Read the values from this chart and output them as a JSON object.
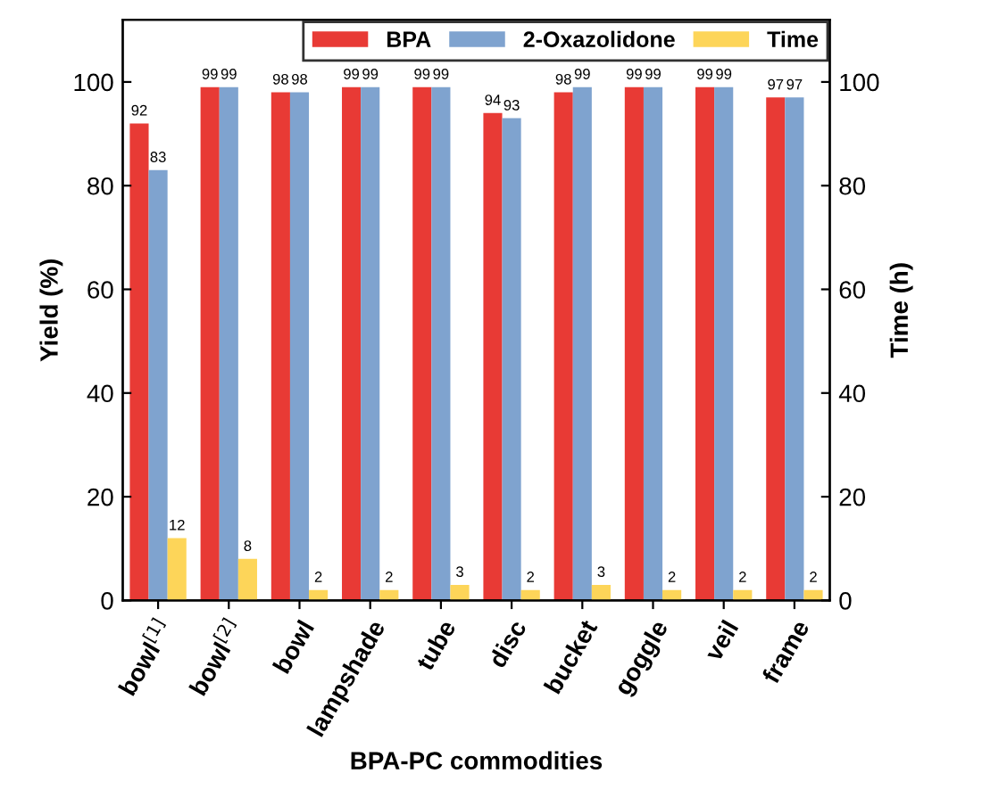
{
  "chart_data": {
    "type": "bar",
    "xlabel": "BPA-PC commodities",
    "ylabel": "Yield (%)",
    "y2label": "Time (h)",
    "categories": [
      "bowl$^{[1]}$",
      "bowl$^{[2]}$",
      "bowl",
      "lampshade",
      "tube",
      "disc",
      "bucket",
      "goggle",
      "veil",
      "frame"
    ],
    "series": [
      {
        "name": "BPA",
        "color": "#e83a35",
        "values": [
          92,
          99,
          98,
          99,
          99,
          94,
          98,
          99,
          99,
          97
        ]
      },
      {
        "name": "2-Oxazolidone",
        "color": "#7fa3cf",
        "values": [
          83,
          99,
          98,
          99,
          99,
          93,
          99,
          99,
          99,
          97
        ]
      },
      {
        "name": "Time",
        "color": "#fdd559",
        "axis": "y2",
        "values": [
          12,
          8,
          2,
          2,
          3,
          2,
          3,
          2,
          2,
          2
        ]
      }
    ],
    "ylim": [
      0,
      112
    ],
    "yticks": [
      0,
      20,
      40,
      60,
      80,
      100
    ],
    "y2lim": [
      0,
      112
    ],
    "y2ticks": [
      0,
      20,
      40,
      60,
      80,
      100
    ],
    "data_labels": true,
    "legend": "top right",
    "grid": false
  }
}
